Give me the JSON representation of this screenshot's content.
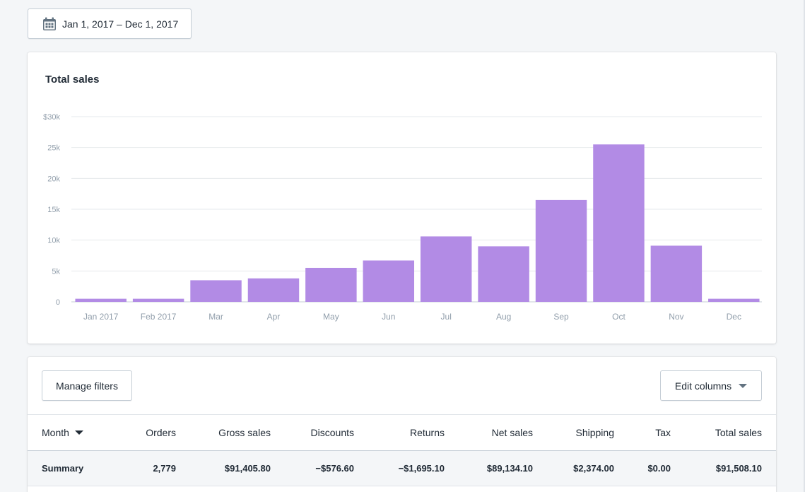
{
  "date_range": {
    "label": "Jan 1, 2017 – Dec 1, 2017",
    "icon": "calendar-icon"
  },
  "chart_card": {
    "title": "Total sales"
  },
  "chart_data": {
    "type": "bar",
    "title": "Total sales",
    "categories": [
      "Jan 2017",
      "Feb 2017",
      "Mar",
      "Apr",
      "May",
      "Jun",
      "Jul",
      "Aug",
      "Sep",
      "Oct",
      "Nov",
      "Dec"
    ],
    "values": [
      500,
      500,
      3500,
      3800,
      5500,
      6700,
      10600,
      9000,
      16500,
      25500,
      9100,
      500
    ],
    "y_ticks": [
      "0",
      "5k",
      "10k",
      "15k",
      "20k",
      "25k",
      "$30k"
    ],
    "ylim": [
      0,
      30000
    ],
    "xlabel": "",
    "ylabel": "",
    "grid": true,
    "bar_color": "#b28be5"
  },
  "toolbar": {
    "manage_filters": "Manage filters",
    "edit_columns": "Edit columns"
  },
  "table": {
    "headers": {
      "month": "Month",
      "orders": "Orders",
      "gross_sales": "Gross sales",
      "discounts": "Discounts",
      "returns": "Returns",
      "net_sales": "Net sales",
      "shipping": "Shipping",
      "tax": "Tax",
      "total_sales": "Total sales"
    },
    "summary": {
      "label": "Summary",
      "orders": "2,779",
      "gross_sales": "$91,405.80",
      "discounts": "−$576.60",
      "returns": "−$1,695.10",
      "net_sales": "$89,134.10",
      "shipping": "$2,374.00",
      "tax": "$0.00",
      "total_sales": "$91,508.10"
    }
  }
}
